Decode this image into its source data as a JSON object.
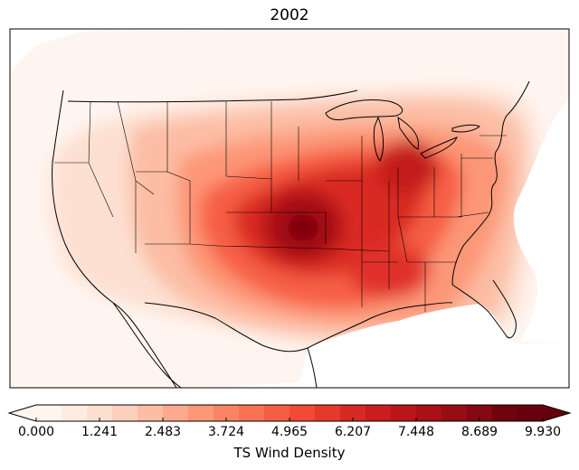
{
  "title": "2002",
  "colorbar": {
    "label": "TS Wind Density",
    "min": 0.0,
    "max": 9.93,
    "levels": 24,
    "ticks": [
      "0.000",
      "1.241",
      "2.483",
      "3.724",
      "4.965",
      "6.207",
      "7.448",
      "8.689",
      "9.930"
    ],
    "colors": [
      "#fff5f0",
      "#feebe2",
      "#fde0d2",
      "#fcd0bd",
      "#fcbda4",
      "#fcaa8e",
      "#fc9777",
      "#fb8464",
      "#fa7153",
      "#f65e44",
      "#f14a35",
      "#e7392b",
      "#d92924",
      "#cb1d1e",
      "#bb151a",
      "#aa1016",
      "#980c13",
      "#840711",
      "#6f030e",
      "#67000d"
    ]
  },
  "density_field": {
    "peak": {
      "lon": -97.5,
      "lat": 38.8,
      "value": 9.93
    },
    "secondary_maxima": [
      {
        "region": "Ohio Valley",
        "lon": -84.0,
        "lat": 40.0,
        "value": 8.3
      },
      {
        "region": "Mississippi Delta",
        "lon": -90.0,
        "lat": 32.5,
        "value": 7.4
      }
    ]
  }
}
